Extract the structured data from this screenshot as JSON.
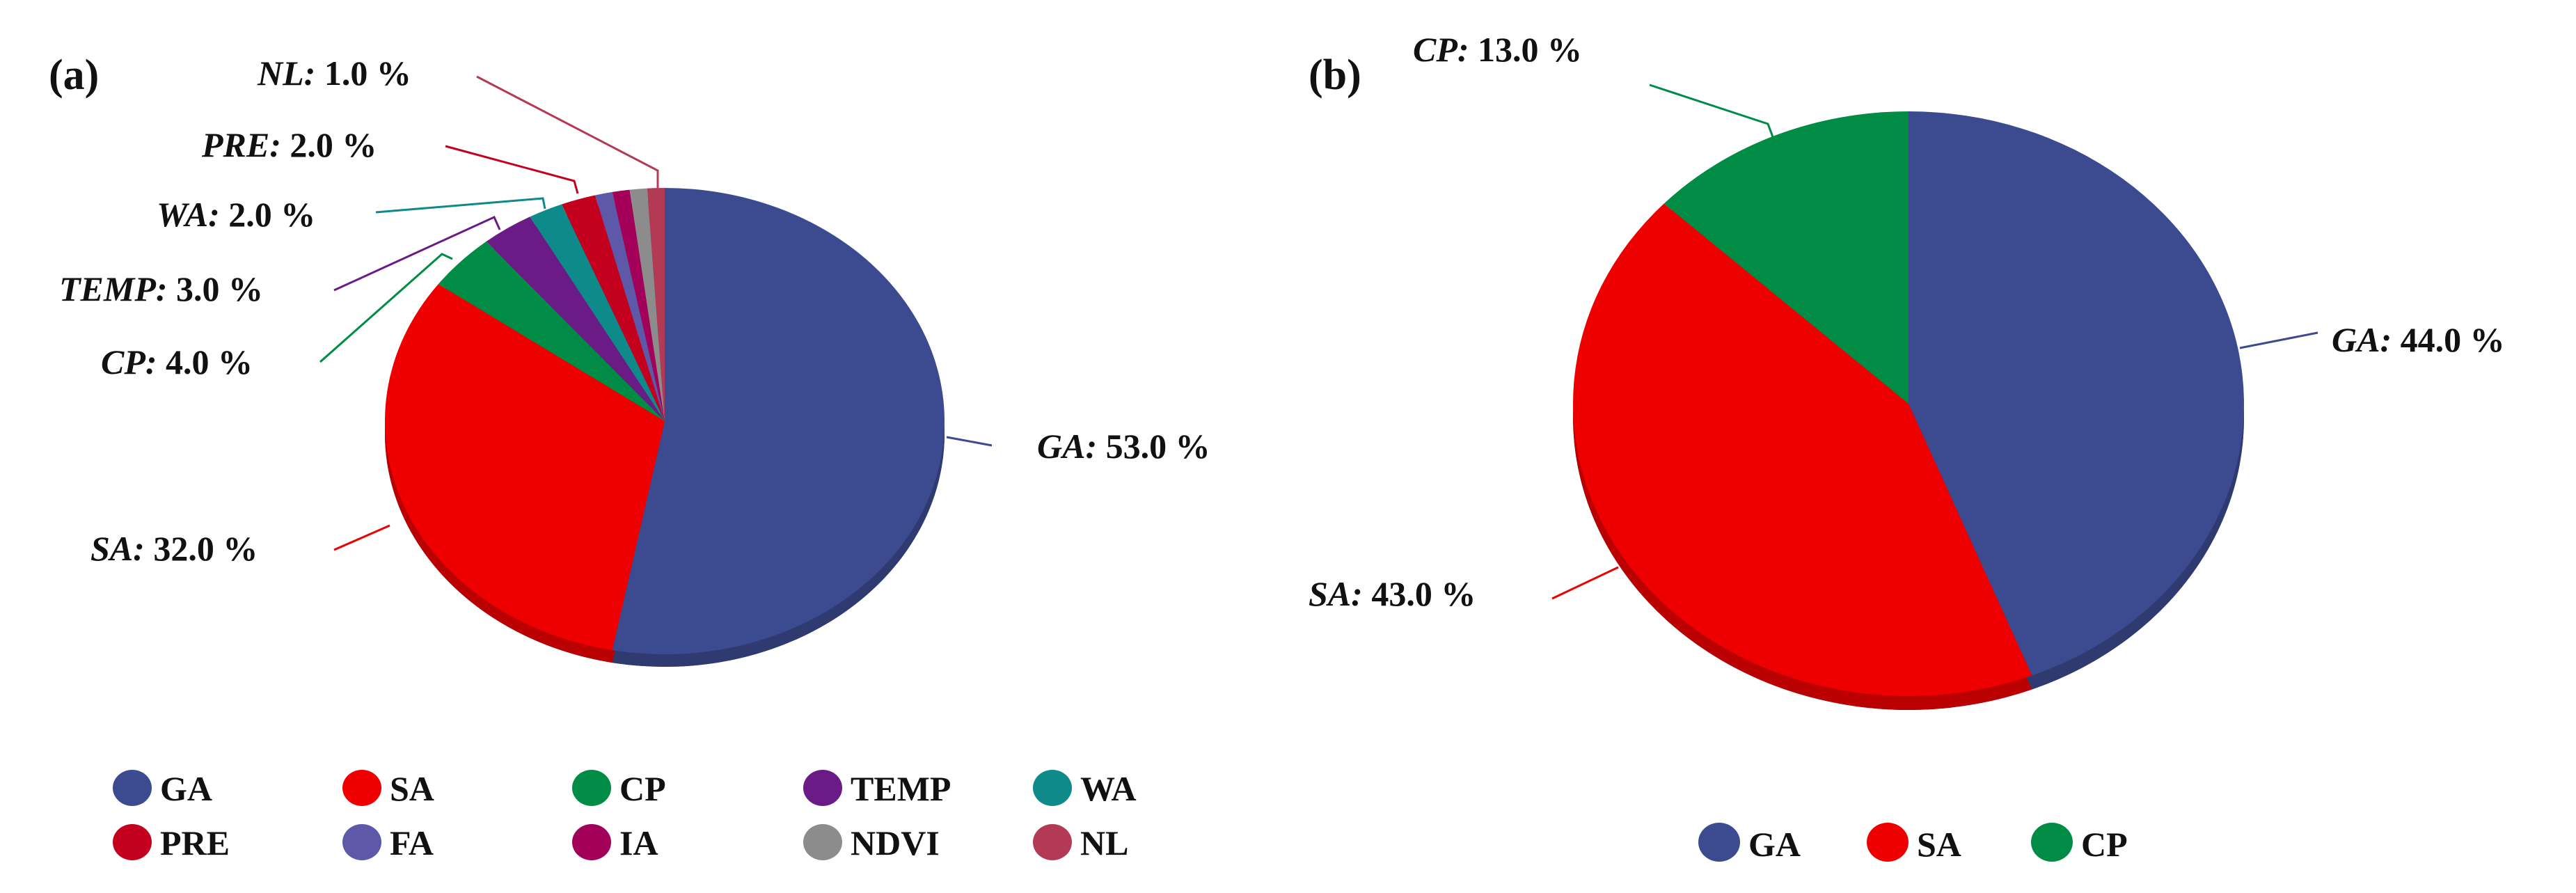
{
  "chart_data": [
    {
      "type": "pie",
      "panel": "(a)",
      "title": "",
      "categories": [
        "GA",
        "SA",
        "CP",
        "TEMP",
        "WA",
        "PRE",
        "FA",
        "IA",
        "NDVI",
        "NL"
      ],
      "values": [
        53.0,
        32.0,
        4.0,
        3.0,
        2.0,
        2.0,
        1.0,
        1.0,
        1.0,
        1.0
      ],
      "colors": [
        "#3c4a8f",
        "#ee0000",
        "#008c45",
        "#6a1b86",
        "#0e8a8a",
        "#c4001f",
        "#5d59a8",
        "#a3005a",
        "#8c8c8c",
        "#b33a55"
      ],
      "data_labels": [
        {
          "category": "GA",
          "text": "53.0 %"
        },
        {
          "category": "SA",
          "text": "32.0 %"
        },
        {
          "category": "CP",
          "text": "4.0 %"
        },
        {
          "category": "TEMP",
          "text": "3.0 %"
        },
        {
          "category": "WA",
          "text": "2.0 %"
        },
        {
          "category": "PRE",
          "text": "2.0 %"
        },
        {
          "category": "NL",
          "text": "1.0 %"
        }
      ],
      "legend": {
        "position": "bottom",
        "entries": [
          "GA",
          "SA",
          "CP",
          "TEMP",
          "WA",
          "PRE",
          "FA",
          "IA",
          "NDVI",
          "NL"
        ]
      }
    },
    {
      "type": "pie",
      "panel": "(b)",
      "title": "",
      "categories": [
        "GA",
        "SA",
        "CP"
      ],
      "values": [
        44.0,
        43.0,
        13.0
      ],
      "colors": [
        "#3c4a8f",
        "#ee0000",
        "#008c45"
      ],
      "data_labels": [
        {
          "category": "GA",
          "text": "44.0 %"
        },
        {
          "category": "SA",
          "text": "43.0 %"
        },
        {
          "category": "CP",
          "text": "13.0 %"
        }
      ],
      "legend": {
        "position": "bottom",
        "entries": [
          "GA",
          "SA",
          "CP"
        ]
      }
    }
  ],
  "panels": {
    "a": {
      "label": "(a)",
      "labels": {
        "ga": {
          "cat": "GA:",
          "val": " 53.0 %"
        },
        "sa": {
          "cat": "SA:",
          "val": " 32.0 %"
        },
        "cp": {
          "cat": "CP:",
          "val": " 4.0 %"
        },
        "temp": {
          "cat": "TEMP:",
          "val": " 3.0 %"
        },
        "wa": {
          "cat": "WA:",
          "val": " 2.0 %"
        },
        "pre": {
          "cat": "PRE:",
          "val": " 2.0 %"
        },
        "nl": {
          "cat": "NL:",
          "val": " 1.0 %"
        }
      },
      "legend": [
        "GA",
        "SA",
        "CP",
        "TEMP",
        "WA",
        "PRE",
        "FA",
        "IA",
        "NDVI",
        "NL"
      ]
    },
    "b": {
      "label": "(b)",
      "labels": {
        "ga": {
          "cat": "GA:",
          "val": " 44.0 %"
        },
        "sa": {
          "cat": "SA:",
          "val": " 43.0 %"
        },
        "cp": {
          "cat": "CP:",
          "val": " 13.0 %"
        }
      },
      "legend": [
        "GA",
        "SA",
        "CP"
      ]
    }
  }
}
